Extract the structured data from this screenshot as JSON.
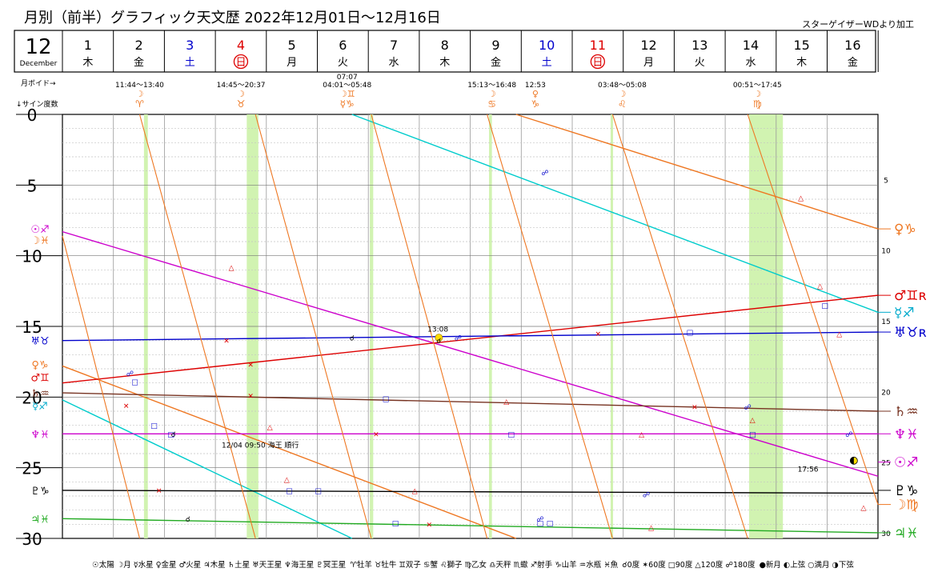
{
  "header": {
    "title": "月別（前半）グラフィック天文歴  2022年12月01日～12月16日",
    "credit": "スターゲイザーWDより加工"
  },
  "month": {
    "number": "12",
    "name": "December"
  },
  "days": [
    {
      "num": "1",
      "wd": "木",
      "color": "#000000",
      "circled": false
    },
    {
      "num": "2",
      "wd": "金",
      "color": "#000000",
      "circled": false
    },
    {
      "num": "3",
      "wd": "土",
      "color": "#0000cc",
      "circled": false
    },
    {
      "num": "4",
      "wd": "日",
      "color": "#dd0000",
      "circled": true
    },
    {
      "num": "5",
      "wd": "月",
      "color": "#000000",
      "circled": false
    },
    {
      "num": "6",
      "wd": "火",
      "color": "#000000",
      "circled": false
    },
    {
      "num": "7",
      "wd": "水",
      "color": "#000000",
      "circled": false
    },
    {
      "num": "8",
      "wd": "木",
      "color": "#000000",
      "circled": false
    },
    {
      "num": "9",
      "wd": "金",
      "color": "#000000",
      "circled": false
    },
    {
      "num": "10",
      "wd": "土",
      "color": "#0000cc",
      "circled": false
    },
    {
      "num": "11",
      "wd": "日",
      "color": "#dd0000",
      "circled": true
    },
    {
      "num": "12",
      "wd": "月",
      "color": "#000000",
      "circled": false
    },
    {
      "num": "13",
      "wd": "火",
      "color": "#000000",
      "circled": false
    },
    {
      "num": "14",
      "wd": "水",
      "color": "#000000",
      "circled": false
    },
    {
      "num": "15",
      "wd": "木",
      "color": "#000000",
      "circled": false
    },
    {
      "num": "16",
      "wd": "金",
      "color": "#000000",
      "circled": false
    }
  ],
  "row_labels": {
    "void_label": "月ボイド→",
    "sign_label": "↓サイン度数"
  },
  "voids": [
    {
      "day": 1.9,
      "text": "11:44～13:40",
      "glyphs": [
        "☽",
        "♈"
      ]
    },
    {
      "day": 4.0,
      "text": "14:45～20:37",
      "glyphs": [
        "☽",
        "♉"
      ]
    },
    {
      "day": 6.2,
      "text": "04:01～05:48",
      "glyphs": [
        "☽♊",
        "☿♑"
      ],
      "extra": "07:07"
    },
    {
      "day": 9.2,
      "text": "15:13～16:48",
      "glyphs": [
        "☽",
        "♋"
      ]
    },
    {
      "day": 10.1,
      "text": "12:53",
      "glyphs": [
        "♀",
        "♑"
      ]
    },
    {
      "day": 11.9,
      "text": "03:48～05:08",
      "glyphs": [
        "☽",
        "♌"
      ]
    },
    {
      "day": 14.7,
      "text": "00:51～17:45",
      "glyphs": [
        "☽",
        "♍"
      ]
    }
  ],
  "left_labels": [
    {
      "deg": 8.1,
      "text": "☉♐",
      "color": "#cc00cc"
    },
    {
      "deg": 8.9,
      "text": "☽♓",
      "color": "#ee7722"
    },
    {
      "deg": 16.0,
      "text": "♅♉",
      "color": "#0000cc"
    },
    {
      "deg": 17.7,
      "text": "♀♑",
      "color": "#ee7722"
    },
    {
      "deg": 18.6,
      "text": "♂♊",
      "color": "#dd0000"
    },
    {
      "deg": 19.7,
      "text": "♄♒",
      "color": "#773322"
    },
    {
      "deg": 20.6,
      "text": "☿♐",
      "color": "#00aacc"
    },
    {
      "deg": 22.6,
      "text": "♆♓",
      "color": "#cc00cc"
    },
    {
      "deg": 26.6,
      "text": "♇♑",
      "color": "#000000"
    },
    {
      "deg": 28.6,
      "text": "♃♓",
      "color": "#22aa22"
    }
  ],
  "right_labels": [
    {
      "deg": 8.1,
      "text": "♀♑",
      "color": "#ee7722"
    },
    {
      "deg": 12.8,
      "text": "♂♊ʀ",
      "color": "#dd0000"
    },
    {
      "deg": 14.0,
      "text": "☿♐",
      "color": "#00aacc"
    },
    {
      "deg": 15.4,
      "text": "♅♉ʀ",
      "color": "#0000cc"
    },
    {
      "deg": 21.0,
      "text": "♄♒",
      "color": "#773322"
    },
    {
      "deg": 22.6,
      "text": "♆♓",
      "color": "#cc00cc"
    },
    {
      "deg": 24.6,
      "text": "☉♐",
      "color": "#cc00cc"
    },
    {
      "deg": 26.6,
      "text": "♇♑",
      "color": "#000000"
    },
    {
      "deg": 27.6,
      "text": "☽♍",
      "color": "#ee7722"
    },
    {
      "deg": 29.6,
      "text": "♃♓",
      "color": "#22aa22"
    }
  ],
  "annotations": [
    {
      "day": 8.08,
      "deg": 15.2,
      "text": "13:08"
    },
    {
      "day": 4.4,
      "deg": 23.4,
      "text": "12/04 09:50 海王 順行"
    },
    {
      "day": 15.75,
      "deg": 25.1,
      "text": "17:56"
    }
  ],
  "legend": {
    "planets": "☉太陽 ☽月 ☿水星 ♀金星 ♂火星 ♃木星 ♄土星 ♅天王星 ♆海王星 ♇冥王星",
    "signs": "♈牡羊 ♉牡牛 ♊双子 ♋蟹 ♌獅子 ♍乙女 ♎天秤 ♏蠍 ♐射手 ♑山羊 ♒水瓶 ♓魚",
    "aspects": "☌0度 ✶60度 □90度 △120度 ☍180度",
    "phases": "●新月 ◐上弦 ○満月 ◑下弦"
  },
  "chart_data": {
    "type": "line",
    "x_unit": "day of December 2022",
    "xlim": [
      0.3,
      17.2
    ],
    "ylim": [
      0,
      30
    ],
    "y_ticks": [
      0,
      5,
      10,
      15,
      20,
      25,
      30
    ],
    "y_tick_labels": [
      "0",
      "5",
      "10",
      "15",
      "20",
      "25",
      "30"
    ],
    "right_ticks": [
      5,
      10,
      15,
      20,
      25,
      30
    ],
    "shaded_void_periods": [
      [
        1.99,
        2.07
      ],
      [
        4.12,
        4.36
      ],
      [
        6.67,
        6.74
      ],
      [
        9.14,
        9.2
      ],
      [
        11.66,
        11.71
      ],
      [
        14.53,
        15.23
      ]
    ],
    "series": [
      {
        "name": "太陽",
        "color": "#cc00cc",
        "points": [
          [
            0.3,
            8.3
          ],
          [
            17.2,
            25.6
          ]
        ]
      },
      {
        "name": "水星",
        "color": "#00cccc",
        "points": [
          [
            0.3,
            20.2
          ],
          [
            6.3,
            30
          ],
          [
            6.3,
            0
          ],
          [
            17.2,
            14.0
          ]
        ]
      },
      {
        "name": "金星",
        "color": "#ee7722",
        "points": [
          [
            0.3,
            17.8
          ],
          [
            9.7,
            30
          ],
          [
            9.7,
            0
          ],
          [
            17.2,
            8.1
          ]
        ]
      },
      {
        "name": "火星",
        "color": "#dd0000",
        "points": [
          [
            0.3,
            19.0
          ],
          [
            17.2,
            12.8
          ]
        ]
      },
      {
        "name": "木星",
        "color": "#22aa22",
        "points": [
          [
            0.3,
            28.6
          ],
          [
            17.2,
            29.6
          ]
        ]
      },
      {
        "name": "土星",
        "color": "#773322",
        "points": [
          [
            0.3,
            19.7
          ],
          [
            17.2,
            21.0
          ]
        ]
      },
      {
        "name": "天王星",
        "color": "#0000cc",
        "points": [
          [
            0.3,
            16.0
          ],
          [
            17.2,
            15.4
          ]
        ]
      },
      {
        "name": "海王星",
        "color": "#cc00cc",
        "points": [
          [
            0.3,
            22.6
          ],
          [
            17.2,
            22.6
          ]
        ]
      },
      {
        "name": "冥王星",
        "color": "#000000",
        "points": [
          [
            0.3,
            26.6
          ],
          [
            17.2,
            26.8
          ]
        ]
      },
      {
        "name": "月1",
        "color": "#ee7722",
        "points": [
          [
            0.3,
            8.6
          ],
          [
            1.9,
            30
          ]
        ]
      },
      {
        "name": "月2",
        "color": "#ee7722",
        "points": [
          [
            1.9,
            0
          ],
          [
            4.3,
            30
          ]
        ]
      },
      {
        "name": "月3",
        "color": "#ee7722",
        "points": [
          [
            4.3,
            0
          ],
          [
            6.7,
            30
          ]
        ]
      },
      {
        "name": "月4",
        "color": "#ee7722",
        "points": [
          [
            6.7,
            0
          ],
          [
            9.1,
            30
          ]
        ]
      },
      {
        "name": "月5",
        "color": "#ee7722",
        "points": [
          [
            9.1,
            0
          ],
          [
            11.7,
            30
          ]
        ]
      },
      {
        "name": "月6",
        "color": "#ee7722",
        "points": [
          [
            11.7,
            0
          ],
          [
            14.5,
            30
          ]
        ]
      },
      {
        "name": "月7",
        "color": "#ee7722",
        "points": [
          [
            14.5,
            0
          ],
          [
            17.2,
            27.6
          ]
        ]
      }
    ],
    "aspects": [
      {
        "day": 1.7,
        "deg": 18.3,
        "sym": "☍",
        "color": "#0000cc"
      },
      {
        "day": 1.8,
        "deg": 18.9,
        "sym": "□",
        "color": "#0000cc"
      },
      {
        "day": 1.62,
        "deg": 20.6,
        "sym": "✕",
        "color": "#dd0000"
      },
      {
        "day": 2.2,
        "deg": 22.0,
        "sym": "□",
        "color": "#0000cc"
      },
      {
        "day": 2.6,
        "deg": 22.6,
        "sym": "☌",
        "color": "#000000"
      },
      {
        "day": 2.55,
        "deg": 22.6,
        "sym": "□",
        "color": "#0000cc"
      },
      {
        "day": 2.3,
        "deg": 26.6,
        "sym": "✕",
        "color": "#dd0000"
      },
      {
        "day": 2.9,
        "deg": 28.6,
        "sym": "☌",
        "color": "#000000"
      },
      {
        "day": 3.8,
        "deg": 10.8,
        "sym": "△",
        "color": "#dd0000"
      },
      {
        "day": 3.7,
        "deg": 16.0,
        "sym": "✕",
        "color": "#dd0000"
      },
      {
        "day": 4.2,
        "deg": 17.7,
        "sym": "✕",
        "color": "#dd0000"
      },
      {
        "day": 4.2,
        "deg": 19.9,
        "sym": "✕",
        "color": "#dd0000"
      },
      {
        "day": 4.6,
        "deg": 22.1,
        "sym": "△",
        "color": "#dd0000"
      },
      {
        "day": 4.95,
        "deg": 25.8,
        "sym": "△",
        "color": "#dd0000"
      },
      {
        "day": 5.0,
        "deg": 26.6,
        "sym": "□",
        "color": "#0000cc"
      },
      {
        "day": 5.6,
        "deg": 26.6,
        "sym": "□",
        "color": "#0000cc"
      },
      {
        "day": 6.3,
        "deg": 15.8,
        "sym": "☌",
        "color": "#000000"
      },
      {
        "day": 7.0,
        "deg": 20.1,
        "sym": "□",
        "color": "#0000cc"
      },
      {
        "day": 6.8,
        "deg": 22.6,
        "sym": "✕",
        "color": "#dd0000"
      },
      {
        "day": 7.2,
        "deg": 28.9,
        "sym": "□",
        "color": "#0000cc"
      },
      {
        "day": 7.6,
        "deg": 26.6,
        "sym": "△",
        "color": "#dd0000"
      },
      {
        "day": 7.9,
        "deg": 29.0,
        "sym": "✕",
        "color": "#dd0000"
      },
      {
        "day": 8.1,
        "deg": 15.8,
        "sym": "●",
        "color": "#ffdd00"
      },
      {
        "day": 8.1,
        "deg": 16.0,
        "sym": "☌",
        "color": "#000000"
      },
      {
        "day": 8.5,
        "deg": 15.8,
        "sym": "☍",
        "color": "#0000cc"
      },
      {
        "day": 9.5,
        "deg": 20.3,
        "sym": "△",
        "color": "#dd0000"
      },
      {
        "day": 9.6,
        "deg": 22.6,
        "sym": "□",
        "color": "#0000cc"
      },
      {
        "day": 10.3,
        "deg": 4.1,
        "sym": "☍",
        "color": "#0000cc"
      },
      {
        "day": 10.2,
        "deg": 28.6,
        "sym": "☍",
        "color": "#0000cc"
      },
      {
        "day": 10.2,
        "deg": 28.9,
        "sym": "□",
        "color": "#0000cc"
      },
      {
        "day": 10.4,
        "deg": 28.9,
        "sym": "□",
        "color": "#0000cc"
      },
      {
        "day": 11.4,
        "deg": 15.5,
        "sym": "✕",
        "color": "#dd0000"
      },
      {
        "day": 12.3,
        "deg": 22.6,
        "sym": "△",
        "color": "#dd0000"
      },
      {
        "day": 12.4,
        "deg": 26.9,
        "sym": "☍",
        "color": "#0000cc"
      },
      {
        "day": 12.5,
        "deg": 29.2,
        "sym": "△",
        "color": "#dd0000"
      },
      {
        "day": 13.3,
        "deg": 15.4,
        "sym": "□",
        "color": "#0000cc"
      },
      {
        "day": 13.4,
        "deg": 20.7,
        "sym": "✕",
        "color": "#dd0000"
      },
      {
        "day": 14.5,
        "deg": 20.7,
        "sym": "☍",
        "color": "#0000cc"
      },
      {
        "day": 14.6,
        "deg": 21.6,
        "sym": "△",
        "color": "#dd0000"
      },
      {
        "day": 14.6,
        "deg": 22.6,
        "sym": "□",
        "color": "#0000cc"
      },
      {
        "day": 15.6,
        "deg": 5.9,
        "sym": "△",
        "color": "#dd0000"
      },
      {
        "day": 16.0,
        "deg": 12.1,
        "sym": "△",
        "color": "#dd0000"
      },
      {
        "day": 16.1,
        "deg": 13.5,
        "sym": "□",
        "color": "#0000cc"
      },
      {
        "day": 16.4,
        "deg": 15.5,
        "sym": "△",
        "color": "#dd0000"
      },
      {
        "day": 16.6,
        "deg": 22.6,
        "sym": "☍",
        "color": "#0000cc"
      },
      {
        "day": 16.7,
        "deg": 24.5,
        "sym": "◑",
        "color": "#222222"
      },
      {
        "day": 16.9,
        "deg": 27.8,
        "sym": "△",
        "color": "#dd0000"
      }
    ]
  }
}
